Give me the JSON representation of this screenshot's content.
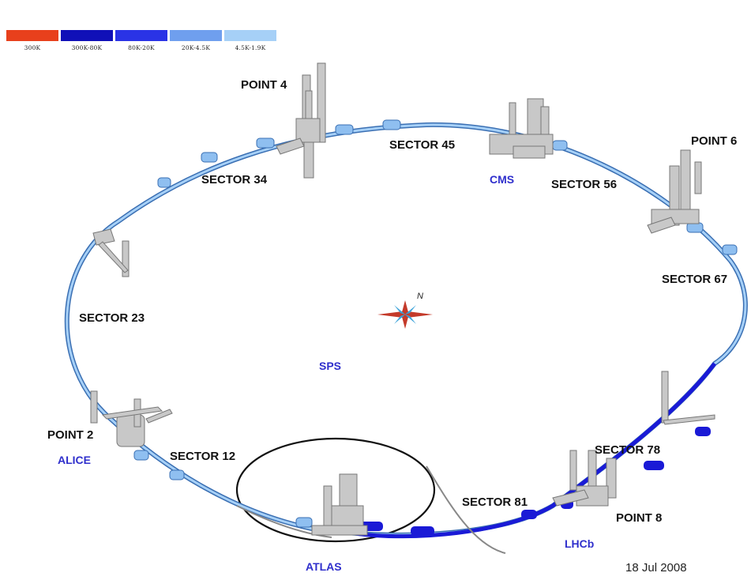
{
  "legend": [
    {
      "label": "300K",
      "color": "#e8401c"
    },
    {
      "label": "300K-80K",
      "color": "#1010b8"
    },
    {
      "label": "80K-20K",
      "color": "#2a33e6"
    },
    {
      "label": "20K-4.5K",
      "color": "#6f9fee"
    },
    {
      "label": "4.5K-1.9K",
      "color": "#a6d0f7"
    }
  ],
  "points": {
    "p4": "POINT 4",
    "p6": "POINT 6",
    "p2": "POINT 2",
    "p8": "POINT 8"
  },
  "sectors": {
    "s45": "SECTOR 45",
    "s34": "SECTOR 34",
    "s56": "SECTOR 56",
    "s67": "SECTOR 67",
    "s23": "SECTOR 23",
    "s12": "SECTOR 12",
    "s78": "SECTOR 78",
    "s81": "SECTOR 81"
  },
  "experiments": {
    "cms": "CMS",
    "alice": "ALICE",
    "atlas": "ATLAS",
    "lhcb": "LHCb",
    "sps": "SPS"
  },
  "compass_label": "N",
  "date": "18 Jul 2008",
  "colors": {
    "ring_cold": "#a6d0f7",
    "ring_outline": "#3a6fb3",
    "ring_warm": "#1a1ad6",
    "structure_gray": "#c8c8c8"
  }
}
